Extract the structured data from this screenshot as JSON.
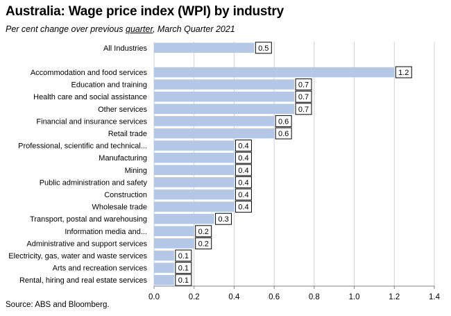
{
  "title": "Australia:  Wage price index (WPI) by industry",
  "subtitle": {
    "prefix": "Per cent change over previous ",
    "underlined": "quarter",
    "suffix": ", March Quarter 2021"
  },
  "source": "Source: ABS and Bloomberg.",
  "chart_data": {
    "type": "bar",
    "orientation": "horizontal",
    "categories": [
      "All Industries",
      "",
      "Accommodation and food services",
      "Education and training",
      "Health care and social assistance",
      "Other services",
      "Financial and insurance services",
      "Retail trade",
      "Professional, scientific and technical...",
      "Manufacturing",
      "Mining",
      "Public administration and safety",
      "Construction",
      "Wholesale trade",
      "Transport, postal and warehousing",
      "Information media and...",
      "Administrative and support services",
      "Electricity, gas, water and waste services",
      "Arts and recreation services",
      "Rental, hiring and real estate services"
    ],
    "values": [
      0.5,
      null,
      1.2,
      0.7,
      0.7,
      0.7,
      0.6,
      0.6,
      0.4,
      0.4,
      0.4,
      0.4,
      0.4,
      0.4,
      0.3,
      0.2,
      0.2,
      0.1,
      0.1,
      0.1
    ],
    "data_labels": [
      "0.5",
      "",
      "1.2",
      "0.7",
      "0.7",
      "0.7",
      "0.6",
      "0.6",
      "0.4",
      "0.4",
      "0.4",
      "0.4",
      "0.4",
      "0.4",
      "0.3",
      "0.2",
      "0.2",
      "0.1",
      "0.1",
      "0.1"
    ],
    "xlim": [
      0,
      1.4
    ],
    "xticks": [
      0,
      0.2,
      0.4,
      0.6,
      0.8,
      1.0,
      1.2,
      1.4
    ],
    "xtick_labels": [
      "0.0",
      "0.2",
      "0.4",
      "0.6",
      "0.8",
      "1.0",
      "1.2",
      "1.4"
    ],
    "grid": "vertical",
    "legend": "none",
    "bar_color": "#b4c7e7",
    "grid_color": "#d0d0d0"
  }
}
